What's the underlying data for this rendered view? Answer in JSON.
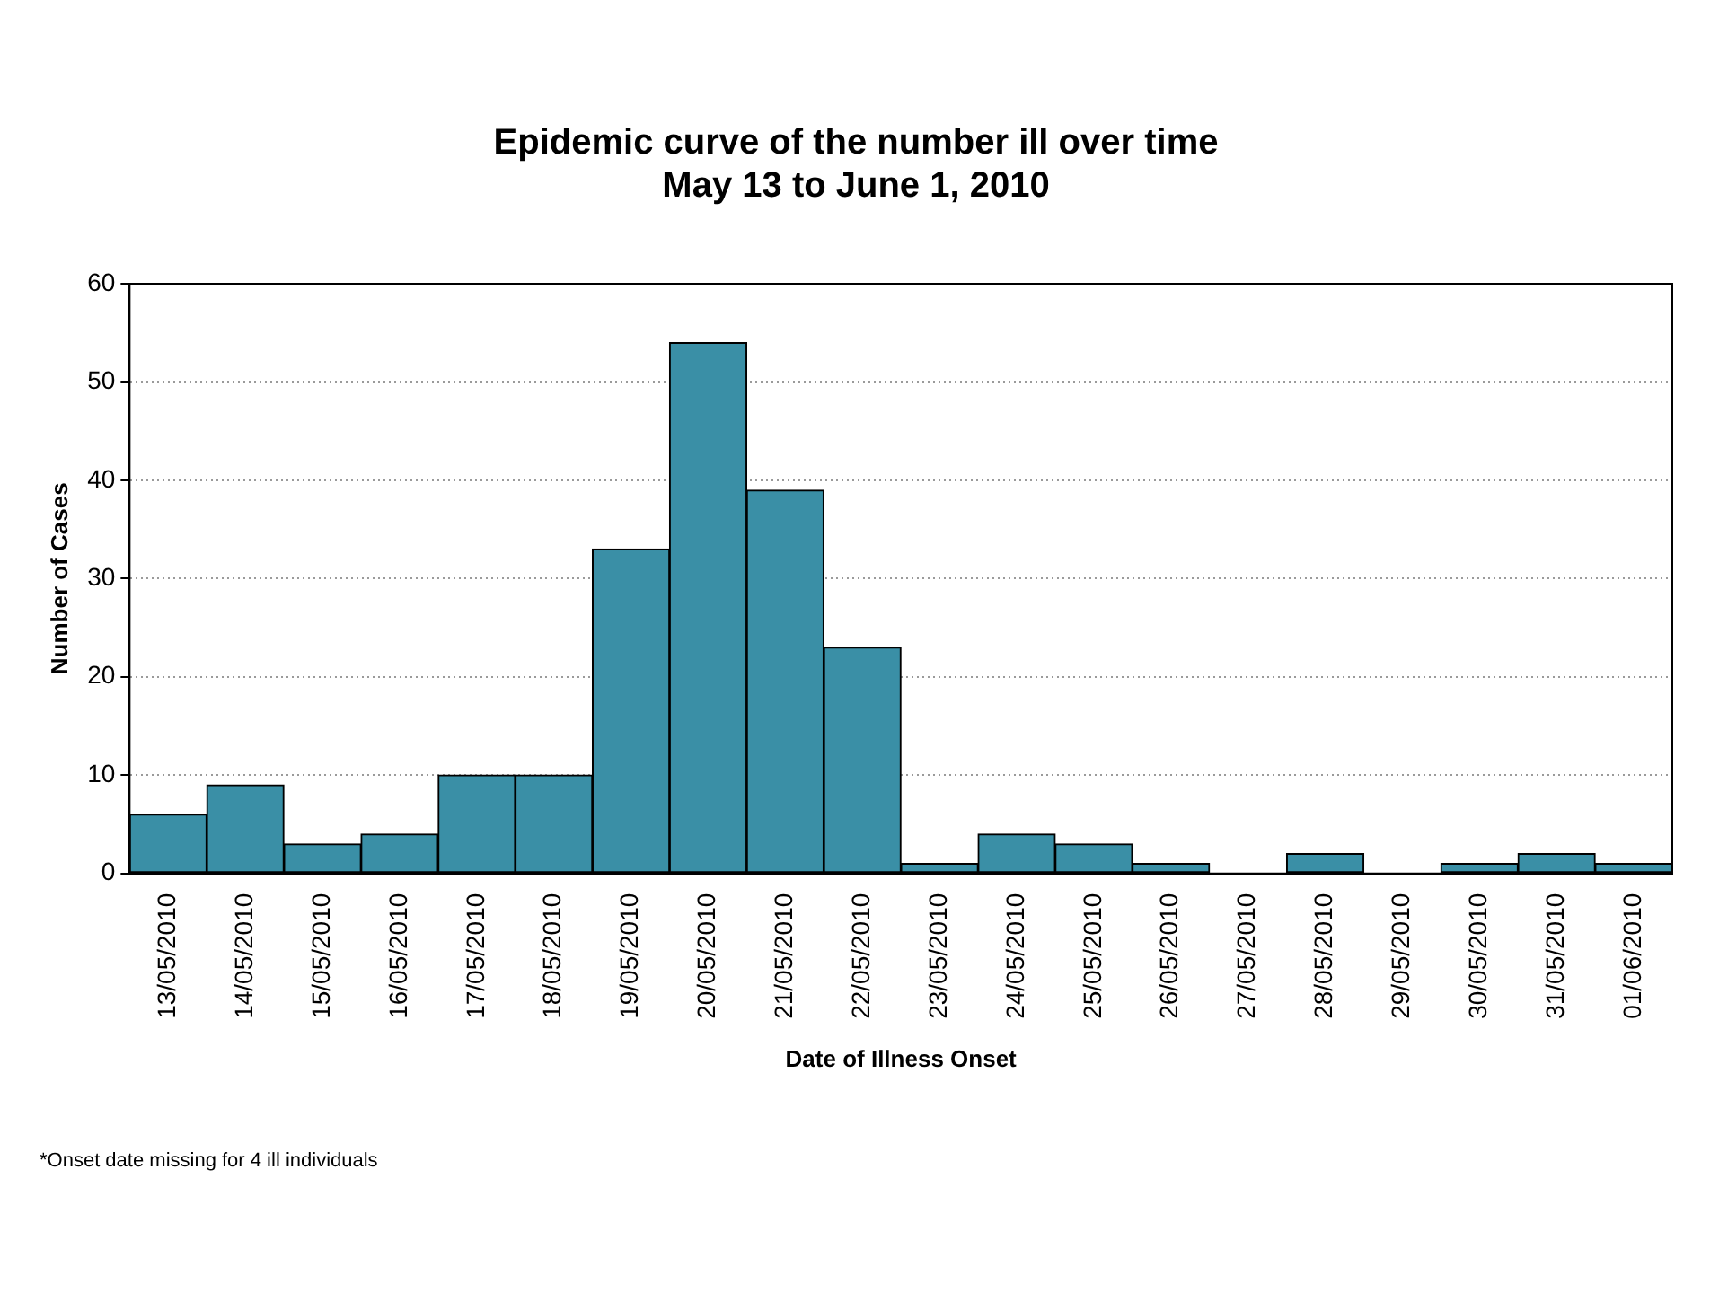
{
  "chart_data": {
    "type": "bar",
    "title": "Epidemic curve of the number ill over time\nMay 13 to June 1, 2010",
    "xlabel": "Date of Illness Onset",
    "ylabel": "Number of Cases",
    "categories": [
      "13/05/2010",
      "14/05/2010",
      "15/05/2010",
      "16/05/2010",
      "17/05/2010",
      "18/05/2010",
      "19/05/2010",
      "20/05/2010",
      "21/05/2010",
      "22/05/2010",
      "23/05/2010",
      "24/05/2010",
      "25/05/2010",
      "26/05/2010",
      "27/05/2010",
      "28/05/2010",
      "29/05/2010",
      "30/05/2010",
      "31/05/2010",
      "01/06/2010"
    ],
    "values": [
      6,
      9,
      3,
      4,
      10,
      10,
      33,
      54,
      39,
      23,
      1,
      4,
      3,
      1,
      0,
      2,
      0,
      1,
      2,
      1
    ],
    "color": "#3a8fa6",
    "ylim": [
      0,
      60
    ],
    "yticks": [
      0,
      10,
      20,
      30,
      40,
      50,
      60
    ],
    "grid": "y",
    "legend": false,
    "annotations": [
      "*Onset date missing for 4 ill individuals"
    ]
  }
}
